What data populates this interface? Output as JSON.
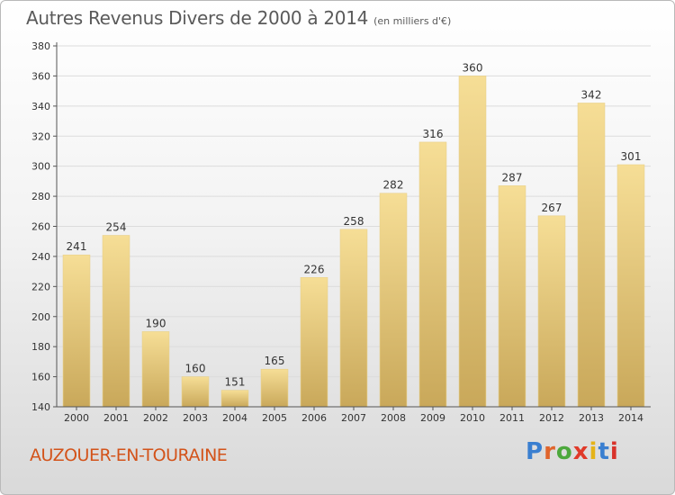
{
  "chart_title": "Autres Revenus Divers de 2000 à 2014",
  "chart_subtitle": "(en milliers d'€)",
  "location": "AUZOUER-EN-TOURAINE",
  "logo": {
    "text": "Proxiti",
    "letter_colors": [
      "#3a7fd0",
      "#e0652c",
      "#4ca83c",
      "#e03a2a",
      "#e5b318",
      "#3a7fd0",
      "#d8322a"
    ]
  },
  "colors": {
    "bar_light": "#f6de96",
    "bar_dark": "#c9a85a",
    "label": "#333333",
    "axis": "#555555",
    "grid": "#dcdcdc",
    "location_text": "#d3531a"
  },
  "chart_data": {
    "type": "bar",
    "title": "Autres Revenus Divers de 2000 à 2014",
    "subtitle": "(en milliers d'€)",
    "xlabel": "",
    "ylabel": "",
    "categories": [
      "2000",
      "2001",
      "2002",
      "2003",
      "2004",
      "2005",
      "2006",
      "2007",
      "2008",
      "2009",
      "2010",
      "2011",
      "2012",
      "2013",
      "2014"
    ],
    "values": [
      241,
      254,
      190,
      160,
      151,
      165,
      226,
      258,
      282,
      316,
      360,
      287,
      267,
      342,
      301
    ],
    "data_labels": [
      "241",
      "254",
      "190",
      "160",
      "151",
      "165",
      "226",
      "258",
      "282",
      "316",
      "360",
      "287",
      "267",
      "342",
      "301"
    ],
    "ylim": [
      140,
      380
    ],
    "yticks": [
      140,
      160,
      180,
      200,
      220,
      240,
      260,
      280,
      300,
      320,
      340,
      360,
      380
    ],
    "ytick_labels": [
      "140",
      "160",
      "180",
      "200",
      "220",
      "240",
      "260",
      "280",
      "300",
      "320",
      "340",
      "360",
      "380"
    ],
    "grid": true,
    "legend": "none"
  }
}
